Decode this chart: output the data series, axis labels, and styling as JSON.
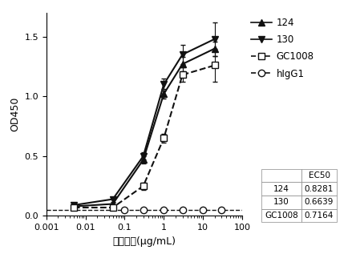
{
  "title": "",
  "xlabel": "抗体浓度(μg/mL)",
  "ylabel": "OD450",
  "ylim": [
    0,
    1.7
  ],
  "yticks": [
    0.0,
    0.5,
    1.0,
    1.5
  ],
  "series": {
    "124": {
      "x_data": [
        0.005,
        0.05,
        0.3,
        1.0,
        3.0,
        20.0
      ],
      "y_data": [
        0.08,
        0.1,
        0.47,
        1.02,
        1.27,
        1.4
      ],
      "yerr": [
        0.01,
        0.01,
        0.03,
        0.04,
        0.06,
        0.06
      ],
      "ec50": 0.8281,
      "marker": "^",
      "linestyle": "-",
      "color": "#111111",
      "fillstyle": "full",
      "markersize": 6
    },
    "130": {
      "x_data": [
        0.005,
        0.05,
        0.3,
        1.0,
        3.0,
        20.0
      ],
      "y_data": [
        0.09,
        0.14,
        0.5,
        1.1,
        1.35,
        1.48
      ],
      "yerr": [
        0.01,
        0.02,
        0.03,
        0.05,
        0.08,
        0.14
      ],
      "ec50": 0.6639,
      "marker": "v",
      "linestyle": "-",
      "color": "#111111",
      "fillstyle": "full",
      "markersize": 6
    },
    "GC1008": {
      "x_data": [
        0.005,
        0.05,
        0.3,
        1.0,
        3.0,
        20.0
      ],
      "y_data": [
        0.07,
        0.07,
        0.25,
        0.65,
        1.18,
        1.26
      ],
      "yerr": [
        0.01,
        0.01,
        0.03,
        0.04,
        0.06,
        0.14
      ],
      "ec50": 0.7164,
      "marker": "s",
      "linestyle": "--",
      "color": "#111111",
      "fillstyle": "none",
      "markersize": 6
    },
    "hIgG1": {
      "x_data": [
        0.1,
        0.3,
        1.0,
        3.0,
        10.0,
        30.0
      ],
      "y_data": [
        0.05,
        0.05,
        0.05,
        0.05,
        0.05,
        0.05
      ],
      "yerr": [
        0.005,
        0.005,
        0.005,
        0.005,
        0.005,
        0.005
      ],
      "ec50": null,
      "marker": "o",
      "linestyle": "--",
      "color": "#111111",
      "fillstyle": "none",
      "markersize": 6
    }
  },
  "ec50_table": {
    "rows": [
      "124",
      "130",
      "GC1008"
    ],
    "values": [
      "0.8281",
      "0.6639",
      "0.7164"
    ],
    "col_header": "EC50"
  },
  "background_color": "#ffffff",
  "figure_size": [
    4.44,
    3.17
  ],
  "dpi": 100
}
